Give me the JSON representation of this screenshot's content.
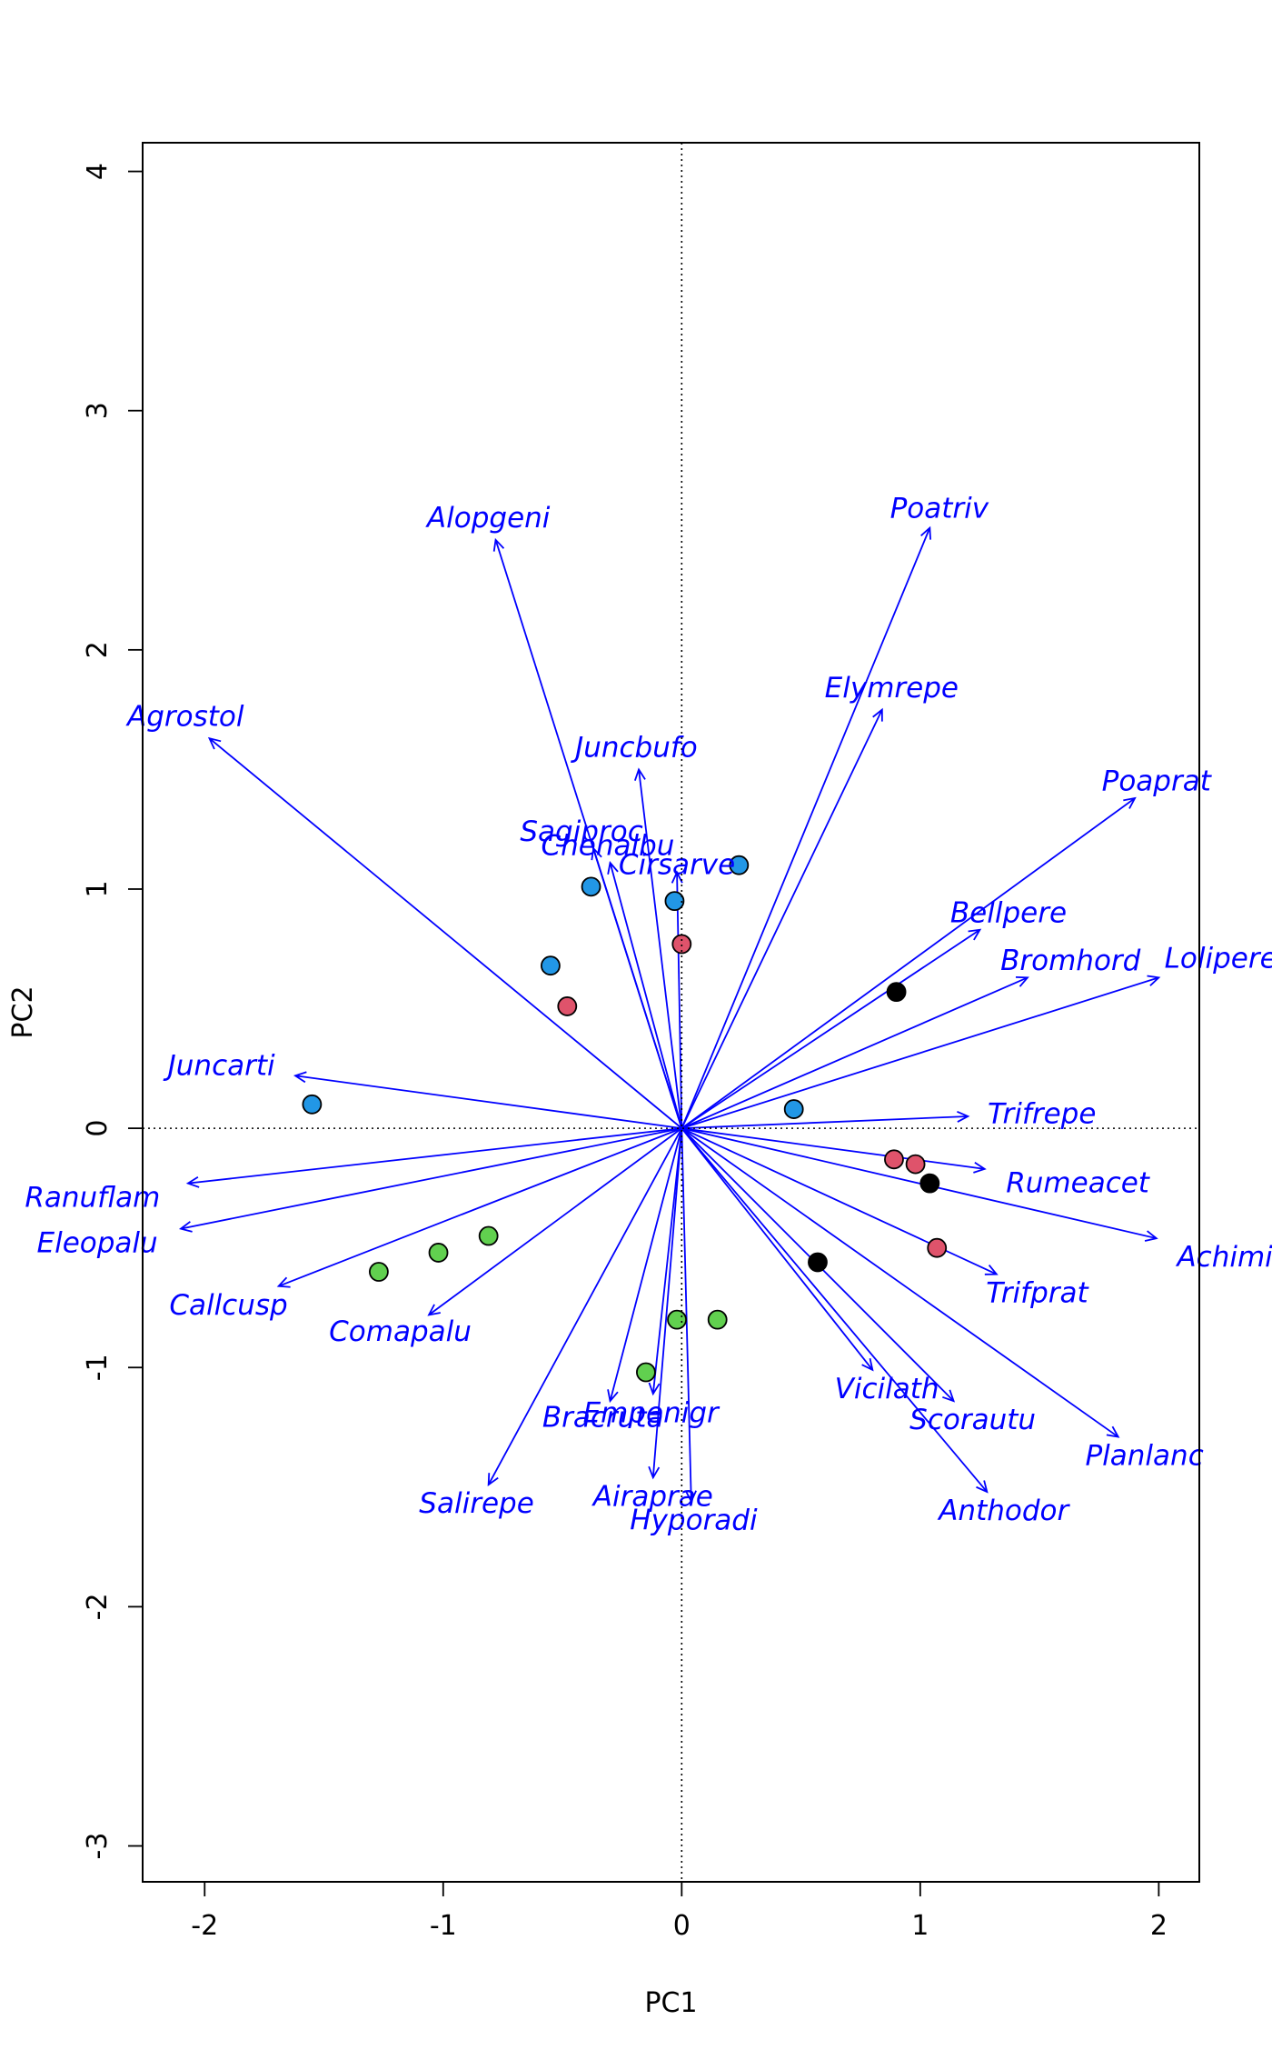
{
  "chart_data": {
    "type": "scatter",
    "subtype": "biplot",
    "title": "",
    "xlabel": "PC1",
    "ylabel": "PC2",
    "xlim": [
      -2.26,
      2.17
    ],
    "ylim": [
      -3.15,
      4.12
    ],
    "x_ticks": [
      -2,
      -1,
      0,
      1,
      2
    ],
    "y_ticks": [
      -3,
      -2,
      -1,
      0,
      1,
      2,
      3,
      4
    ],
    "x_tick_labels": [
      "-2",
      "-1",
      "0",
      "1",
      "2"
    ],
    "y_tick_labels": [
      "-3",
      "-2",
      "-1",
      "0",
      "1",
      "2",
      "3",
      "4"
    ],
    "grid": false,
    "reference_lines": {
      "x": 0,
      "y": 0,
      "style": "dotted"
    },
    "colors": {
      "arrow": "#0000ff",
      "group_black": "#000000",
      "group_red": "#df536b",
      "group_green": "#61d04f",
      "group_blue": "#2297e6"
    },
    "points": [
      {
        "x": 0.9,
        "y": 0.57,
        "group": "black"
      },
      {
        "x": 1.04,
        "y": -0.23,
        "group": "black"
      },
      {
        "x": 0.57,
        "y": -0.56,
        "group": "black"
      },
      {
        "x": 0.0,
        "y": 0.77,
        "group": "red"
      },
      {
        "x": -0.48,
        "y": 0.51,
        "group": "red"
      },
      {
        "x": 0.89,
        "y": -0.13,
        "group": "red"
      },
      {
        "x": 0.98,
        "y": -0.15,
        "group": "red"
      },
      {
        "x": 1.07,
        "y": -0.5,
        "group": "red"
      },
      {
        "x": -0.81,
        "y": -0.45,
        "group": "green"
      },
      {
        "x": -1.02,
        "y": -0.52,
        "group": "green"
      },
      {
        "x": -1.27,
        "y": -0.6,
        "group": "green"
      },
      {
        "x": -0.02,
        "y": -0.8,
        "group": "green"
      },
      {
        "x": 0.15,
        "y": -0.8,
        "group": "green"
      },
      {
        "x": -0.15,
        "y": -1.02,
        "group": "green"
      },
      {
        "x": 0.24,
        "y": 1.1,
        "group": "blue"
      },
      {
        "x": -0.38,
        "y": 1.01,
        "group": "blue"
      },
      {
        "x": -0.03,
        "y": 0.95,
        "group": "blue"
      },
      {
        "x": -0.55,
        "y": 0.68,
        "group": "blue"
      },
      {
        "x": -1.55,
        "y": 0.1,
        "group": "blue"
      },
      {
        "x": 0.47,
        "y": 0.08,
        "group": "blue"
      }
    ],
    "arrows": [
      {
        "name": "Alopgeni",
        "x": -0.78,
        "y": 2.46,
        "lx": -0.81,
        "ly": 2.55
      },
      {
        "name": "Poatriv",
        "x": 1.04,
        "y": 2.51,
        "lx": 1.08,
        "ly": 2.59
      },
      {
        "name": "Agrostol",
        "x": -1.98,
        "y": 1.63,
        "lx": -2.08,
        "ly": 1.72
      },
      {
        "name": "Elymrepe",
        "x": 0.84,
        "y": 1.75,
        "lx": 0.88,
        "ly": 1.84
      },
      {
        "name": "Juncbufo",
        "x": -0.18,
        "y": 1.5,
        "lx": -0.19,
        "ly": 1.59
      },
      {
        "name": "Poaprat",
        "x": 1.9,
        "y": 1.38,
        "lx": 1.99,
        "ly": 1.45
      },
      {
        "name": "Sagiproc",
        "x": -0.37,
        "y": 1.17,
        "lx": -0.42,
        "ly": 1.24
      },
      {
        "name": "Chenalbu",
        "x": -0.3,
        "y": 1.11,
        "lx": -0.31,
        "ly": 1.18
      },
      {
        "name": "Cirsarve",
        "x": -0.02,
        "y": 1.07,
        "lx": -0.02,
        "ly": 1.1
      },
      {
        "name": "Bellpere",
        "x": 1.25,
        "y": 0.83,
        "lx": 1.37,
        "ly": 0.9
      },
      {
        "name": "Bromhord",
        "x": 1.45,
        "y": 0.63,
        "lx": 1.63,
        "ly": 0.7
      },
      {
        "name": "Lolipere",
        "x": 2.0,
        "y": 0.63,
        "lx": 2.26,
        "ly": 0.71
      },
      {
        "name": "Juncarti",
        "x": -1.62,
        "y": 0.22,
        "lx": -1.93,
        "ly": 0.26
      },
      {
        "name": "Trifrepe",
        "x": 1.2,
        "y": 0.05,
        "lx": 1.51,
        "ly": 0.06
      },
      {
        "name": "Rumeacet",
        "x": 1.27,
        "y": -0.17,
        "lx": 1.66,
        "ly": -0.23
      },
      {
        "name": "Ranuflam",
        "x": -2.07,
        "y": -0.23,
        "lx": -2.47,
        "ly": -0.29
      },
      {
        "name": "Eleopalu",
        "x": -2.1,
        "y": -0.42,
        "lx": -2.45,
        "ly": -0.48
      },
      {
        "name": "Achimill",
        "x": 1.99,
        "y": -0.46,
        "lx": 2.31,
        "ly": -0.54
      },
      {
        "name": "Trifprat",
        "x": 1.32,
        "y": -0.61,
        "lx": 1.49,
        "ly": -0.69
      },
      {
        "name": "Callcusp",
        "x": -1.69,
        "y": -0.66,
        "lx": -1.9,
        "ly": -0.74
      },
      {
        "name": "Comapalu",
        "x": -1.06,
        "y": -0.78,
        "lx": -1.18,
        "ly": -0.85
      },
      {
        "name": "Vicilath",
        "x": 0.8,
        "y": -1.01,
        "lx": 0.86,
        "ly": -1.09
      },
      {
        "name": "Empenigr",
        "x": -0.12,
        "y": -1.11,
        "lx": -0.13,
        "ly": -1.19
      },
      {
        "name": "Scorautu",
        "x": 1.14,
        "y": -1.14,
        "lx": 1.22,
        "ly": -1.22
      },
      {
        "name": "Bracruta",
        "x": -0.3,
        "y": -1.14,
        "lx": -0.33,
        "ly": -1.21
      },
      {
        "name": "Planlanc",
        "x": 1.83,
        "y": -1.29,
        "lx": 1.94,
        "ly": -1.37
      },
      {
        "name": "Salirepe",
        "x": -0.81,
        "y": -1.49,
        "lx": -0.86,
        "ly": -1.57
      },
      {
        "name": "Airaprae",
        "x": -0.12,
        "y": -1.46,
        "lx": -0.12,
        "ly": -1.54
      },
      {
        "name": "Anthodor",
        "x": 1.28,
        "y": -1.52,
        "lx": 1.35,
        "ly": -1.6
      },
      {
        "name": "Hyporadi",
        "x": 0.04,
        "y": -1.56,
        "lx": 0.05,
        "ly": -1.64
      }
    ]
  }
}
